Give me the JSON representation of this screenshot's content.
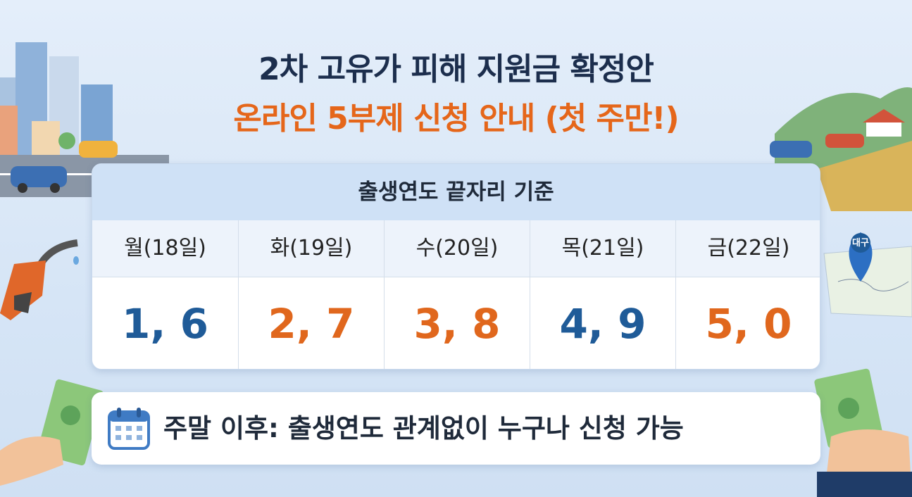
{
  "header": {
    "title": "2차 고유가 피해 지원금 확정안",
    "subtitle": "온라인 5부제 신청 안내 (첫 주만!)"
  },
  "table": {
    "caption": "출생연도 끝자리 기준",
    "columns": [
      {
        "day": "월(18일)",
        "digits": "1, 6",
        "color": "#1f5b98"
      },
      {
        "day": "화(19일)",
        "digits": "2, 7",
        "color": "#e0671d"
      },
      {
        "day": "수(20일)",
        "digits": "3, 8",
        "color": "#e0671d"
      },
      {
        "day": "목(21일)",
        "digits": "4, 9",
        "color": "#1f5b98"
      },
      {
        "day": "금(22일)",
        "digits": "5, 0",
        "color": "#e0671d"
      }
    ]
  },
  "footer": {
    "text": "주말 이후: 출생연도 관계없이 누구나 신청 가능"
  },
  "map": {
    "label": "대구"
  }
}
